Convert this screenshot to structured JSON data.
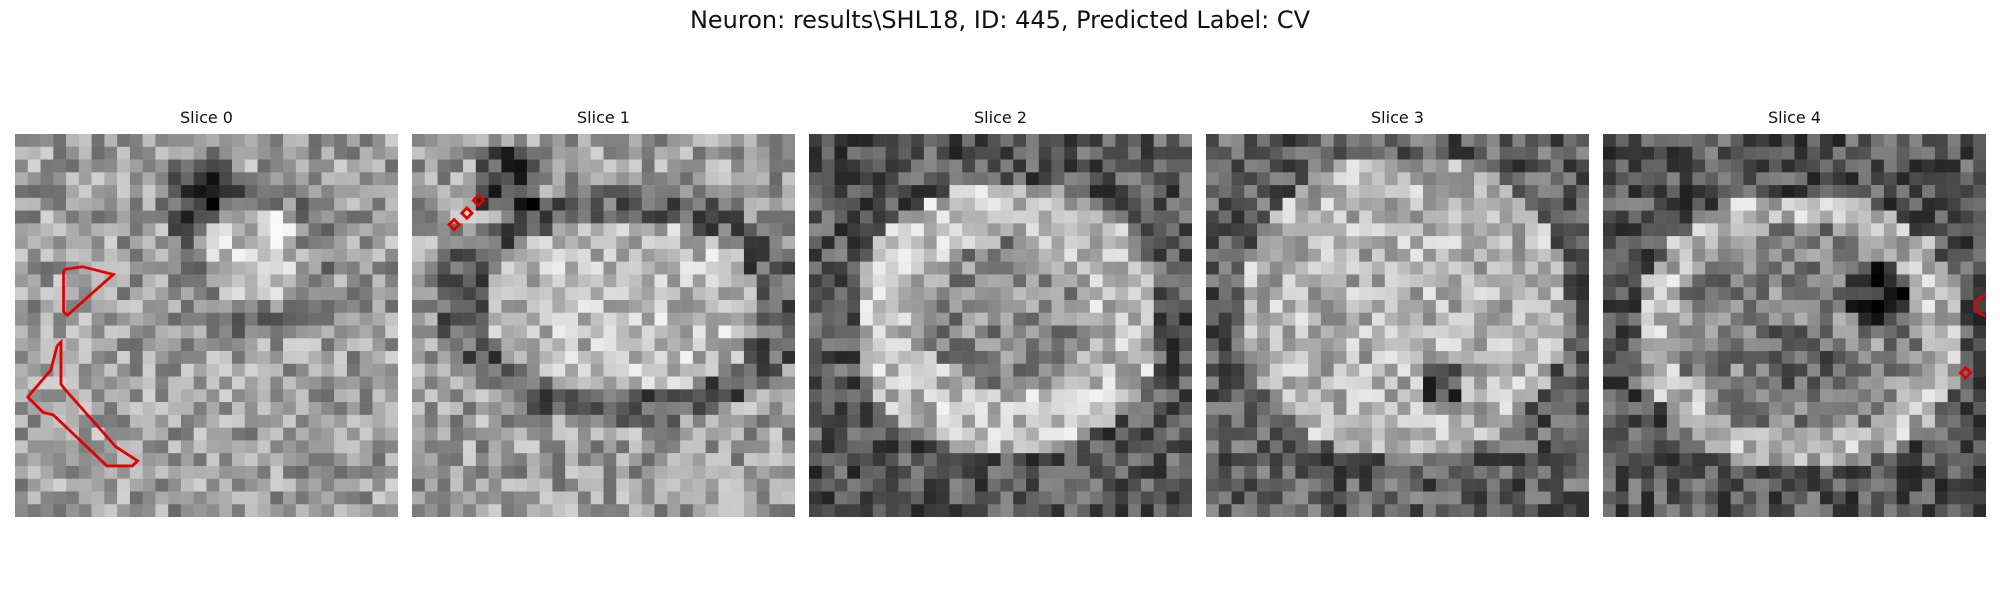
{
  "figure": {
    "title": "Neuron: results\\SHL18, ID: 445, Predicted Label: CV"
  },
  "panels": [
    {
      "title": "Slice 0",
      "seed": 11,
      "pattern": "s0"
    },
    {
      "title": "Slice 1",
      "seed": 23,
      "pattern": "s1"
    },
    {
      "title": "Slice 2",
      "seed": 37,
      "pattern": "s2"
    },
    {
      "title": "Slice 3",
      "seed": 41,
      "pattern": "s3"
    },
    {
      "title": "Slice 4",
      "seed": 59,
      "pattern": "s4"
    }
  ],
  "colors": {
    "background": "#ffffff",
    "contour": "#e00000"
  }
}
